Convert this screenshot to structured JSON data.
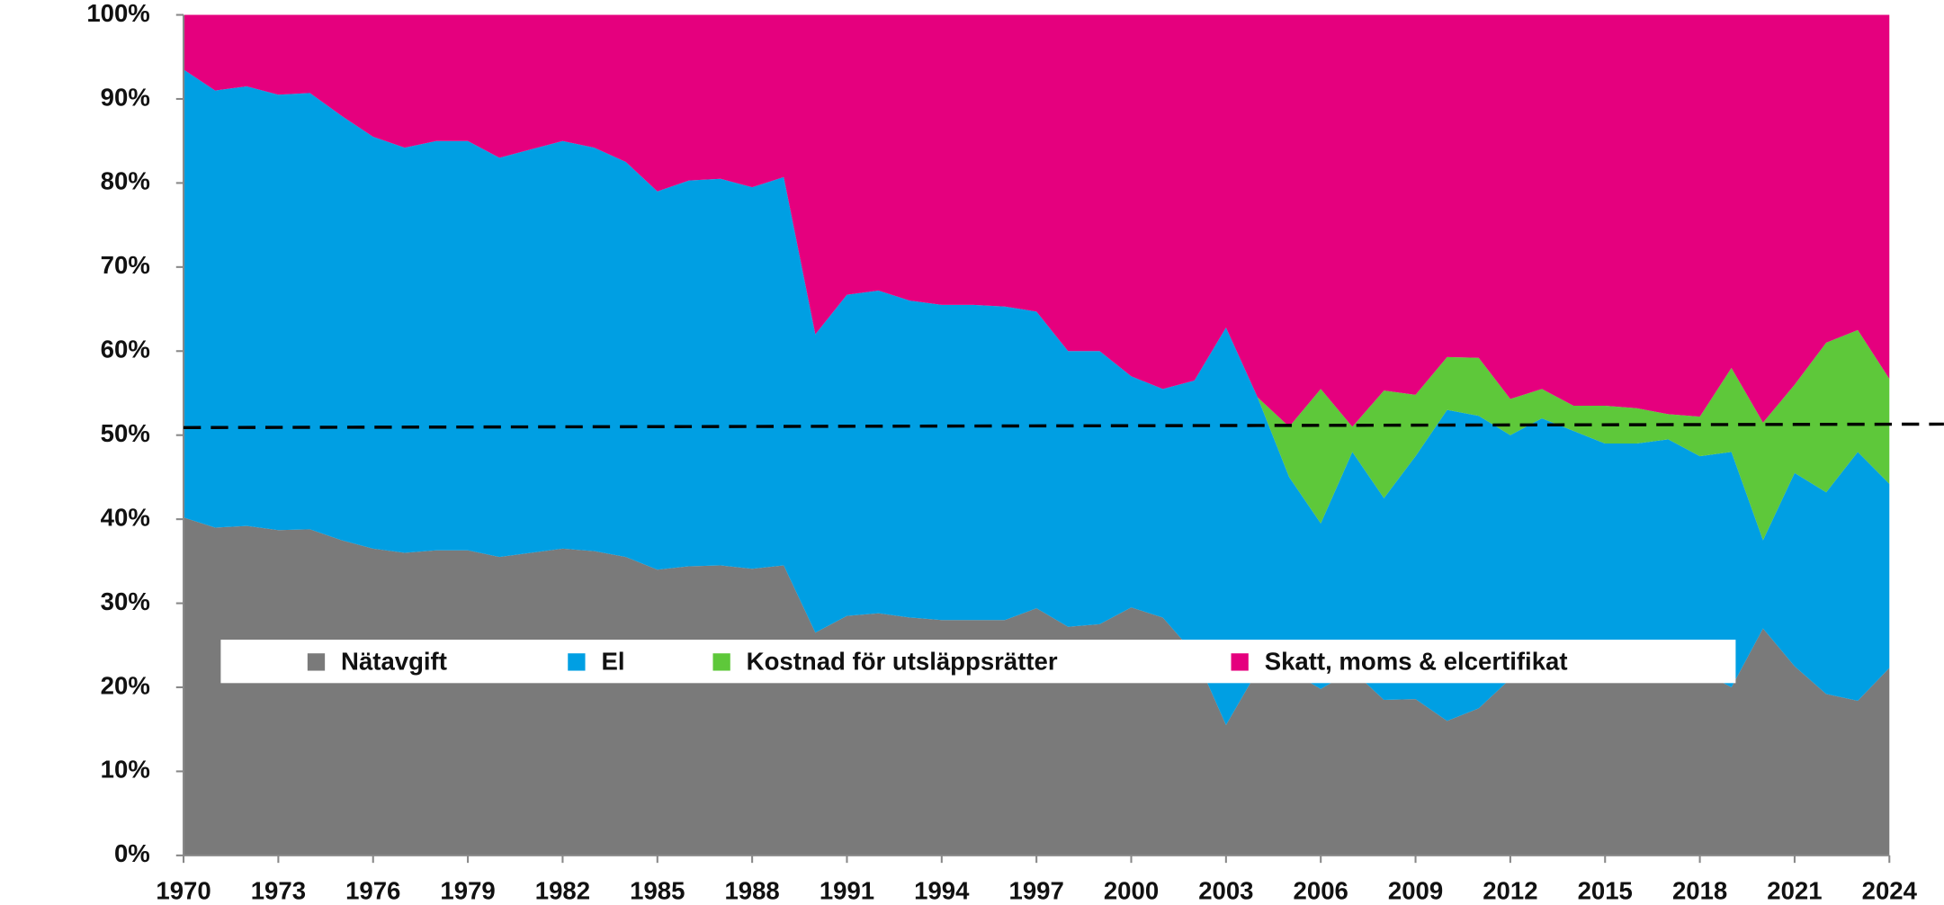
{
  "chart_data": {
    "type": "stacked_area",
    "x": [
      1970,
      1971,
      1972,
      1973,
      1974,
      1975,
      1976,
      1977,
      1978,
      1979,
      1980,
      1981,
      1982,
      1983,
      1984,
      1985,
      1986,
      1987,
      1988,
      1989,
      1990,
      1991,
      1992,
      1993,
      1994,
      1995,
      1996,
      1997,
      1998,
      1999,
      2000,
      2001,
      2002,
      2003,
      2004,
      2005,
      2006,
      2007,
      2008,
      2009,
      2010,
      2011,
      2012,
      2013,
      2014,
      2015,
      2016,
      2017,
      2018,
      2019,
      2020,
      2021,
      2022,
      2023,
      2024
    ],
    "series": [
      {
        "name": "Nätavgift",
        "color": "#7a7a7a",
        "values": [
          40.2,
          39,
          39.2,
          38.7,
          38.8,
          37.5,
          36.5,
          36,
          36.3,
          36.3,
          35.5,
          36,
          36.5,
          36.2,
          35.5,
          34,
          34.4,
          34.5,
          34.1,
          34.5,
          26.5,
          28.5,
          28.8,
          28.3,
          28,
          28,
          28,
          29.4,
          27.2,
          27.5,
          29.5,
          28.3,
          24,
          15.5,
          22,
          22,
          19.8,
          22,
          18.5,
          18.6,
          16,
          17.5,
          21,
          22,
          22,
          22,
          22,
          22,
          22,
          20,
          27,
          22.5,
          19.2,
          18.4,
          22.3
        ]
      },
      {
        "name": "El",
        "color": "#009fe3",
        "values": [
          53.3,
          52,
          52.3,
          51.8,
          51.9,
          50.5,
          49,
          48.2,
          48.7,
          48.7,
          47.5,
          48,
          48.5,
          48,
          47,
          45,
          45.9,
          46,
          45.4,
          46.2,
          35.5,
          38.2,
          38.4,
          37.7,
          37.5,
          37.5,
          37.3,
          35.3,
          32.8,
          32.5,
          27.5,
          27.2,
          32.5,
          47.3,
          32.5,
          23,
          19.7,
          26,
          24,
          28.9,
          37,
          34.8,
          29,
          30,
          28.5,
          27,
          27,
          27.5,
          25.5,
          28,
          10.5,
          23,
          24,
          29.6,
          21.9
        ]
      },
      {
        "name": "Kostnad för utsläppsrätter",
        "color": "#5ec83a",
        "values": [
          null,
          null,
          null,
          null,
          null,
          null,
          null,
          null,
          null,
          null,
          null,
          null,
          null,
          null,
          null,
          null,
          null,
          null,
          null,
          null,
          null,
          null,
          null,
          null,
          null,
          null,
          null,
          null,
          null,
          null,
          null,
          null,
          null,
          null,
          0,
          6,
          16,
          3,
          12.8,
          7.3,
          6.3,
          6.9,
          4.3,
          3.5,
          3,
          4.5,
          4.2,
          3,
          4.7,
          10,
          14,
          10.5,
          17.8,
          14.5,
          12.5
        ]
      },
      {
        "name": "Skatt, moms & elcertifikat",
        "color": "#e5007e",
        "values": [
          6.5,
          9,
          8.5,
          9.5,
          9.3,
          12,
          14.5,
          15.8,
          15,
          15,
          17,
          16,
          15,
          15.8,
          17.5,
          21,
          19.7,
          19.5,
          20.5,
          19.3,
          38,
          33.3,
          32.8,
          34,
          34.5,
          34.5,
          34.7,
          35.3,
          40,
          40,
          43,
          44.5,
          43.5,
          37.2,
          45.5,
          49,
          44.5,
          49,
          44.7,
          45.2,
          40.7,
          40.8,
          45.7,
          44.5,
          46.5,
          46.5,
          46.8,
          47.5,
          47.8,
          42,
          48.5,
          44,
          39,
          37.5,
          43.3
        ]
      }
    ],
    "xlim": [
      1970,
      2024
    ],
    "xticks": [
      1970,
      1973,
      1976,
      1979,
      1982,
      1985,
      1988,
      1991,
      1994,
      1997,
      2000,
      2003,
      2006,
      2009,
      2012,
      2015,
      2018,
      2021,
      2024
    ],
    "ylim": [
      0,
      100
    ],
    "yticks": [
      {
        "value": 0,
        "label": "0%"
      },
      {
        "value": 10,
        "label": "10%"
      },
      {
        "value": 20,
        "label": "20%"
      },
      {
        "value": 30,
        "label": "30%"
      },
      {
        "value": 40,
        "label": "40%"
      },
      {
        "value": 50,
        "label": "50%"
      },
      {
        "value": 60,
        "label": "60%"
      },
      {
        "value": 70,
        "label": "70%"
      },
      {
        "value": 80,
        "label": "80%"
      },
      {
        "value": 90,
        "label": "90%"
      },
      {
        "value": 100,
        "label": "100%"
      }
    ],
    "reference_line": [
      50.9,
      51.3
    ]
  }
}
